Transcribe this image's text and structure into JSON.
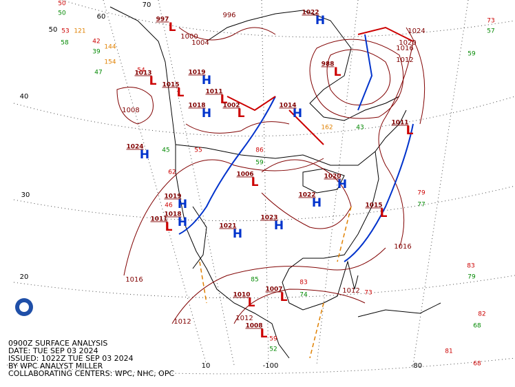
{
  "caption": [
    "0900Z SURFACE ANALYSIS",
    "DATE: TUE SEP 03 2024",
    "ISSUED: 1022Z TUE SEP 03 2024",
    "BY WPC ANALYST MILLER",
    "COLLABORATING CENTERS: WPC, NHC, OPC"
  ],
  "graticule_labels": [
    50,
    60,
    70,
    40,
    30,
    20,
    10,
    -100,
    -80
  ],
  "pressure_centers": [
    {
      "type": "H",
      "pressure": 1024
    },
    {
      "type": "H",
      "pressure": 1019
    },
    {
      "type": "H",
      "pressure": 1018
    },
    {
      "type": "H",
      "pressure": 1014
    },
    {
      "type": "H",
      "pressure": 1020
    },
    {
      "type": "H",
      "pressure": 1022
    },
    {
      "type": "H",
      "pressure": 1023
    },
    {
      "type": "H",
      "pressure": 1021
    },
    {
      "type": "H",
      "pressure": 1019
    },
    {
      "type": "H",
      "pressure": 1018
    },
    {
      "type": "H",
      "pressure": 1022
    },
    {
      "type": "L",
      "pressure": 1015
    },
    {
      "type": "L",
      "pressure": 1006
    },
    {
      "type": "L",
      "pressure": 1007
    },
    {
      "type": "L",
      "pressure": 1010
    },
    {
      "type": "L",
      "pressure": 1008
    },
    {
      "type": "L",
      "pressure": 997
    },
    {
      "type": "L",
      "pressure": 1013
    },
    {
      "type": "L",
      "pressure": 1015
    },
    {
      "type": "L",
      "pressure": 1011
    },
    {
      "type": "L",
      "pressure": 1002
    },
    {
      "type": "L",
      "pressure": 988
    },
    {
      "type": "L",
      "pressure": 1011
    },
    {
      "type": "L",
      "pressure": 1011
    }
  ],
  "isobar_labels": [
    1016,
    1012,
    1012,
    1016,
    1024,
    1020,
    1016,
    1012,
    996,
    1000,
    1004,
    1008,
    1012
  ],
  "station_values": [
    {
      "value": 50,
      "color": "#cc0000"
    },
    {
      "value": 50,
      "color": "#008800"
    },
    {
      "value": 53,
      "color": "#cc0000"
    },
    {
      "value": 121,
      "color": "#e08000"
    },
    {
      "value": 58,
      "color": "#008800"
    },
    {
      "value": 42,
      "color": "#cc0000"
    },
    {
      "value": 144,
      "color": "#e08000"
    },
    {
      "value": 39,
      "color": "#008800"
    },
    {
      "value": 154,
      "color": "#e08000"
    },
    {
      "value": 47,
      "color": "#008800"
    },
    {
      "value": 54,
      "color": "#cc0000"
    },
    {
      "value": 73,
      "color": "#cc0000"
    },
    {
      "value": 57,
      "color": "#008800"
    },
    {
      "value": 59,
      "color": "#008800"
    },
    {
      "value": 79,
      "color": "#cc0000"
    },
    {
      "value": 77,
      "color": "#008800"
    },
    {
      "value": 83,
      "color": "#cc0000"
    },
    {
      "value": 79,
      "color": "#008800"
    },
    {
      "value": 82,
      "color": "#cc0000"
    },
    {
      "value": 81,
      "color": "#cc0000"
    },
    {
      "value": 68,
      "color": "#cc0000"
    },
    {
      "value": 68,
      "color": "#008800"
    },
    {
      "value": 59,
      "color": "#cc0000"
    },
    {
      "value": 52,
      "color": "#008800"
    },
    {
      "value": 86,
      "color": "#cc0000"
    },
    {
      "value": 55,
      "color": "#cc0000"
    },
    {
      "value": 59,
      "color": "#008800"
    },
    {
      "value": 62,
      "color": "#cc0000"
    },
    {
      "value": 46,
      "color": "#cc0000"
    },
    {
      "value": 45,
      "color": "#008800"
    },
    {
      "value": 83,
      "color": "#cc0000"
    },
    {
      "value": 74,
      "color": "#008800"
    },
    {
      "value": 73,
      "color": "#cc0000"
    },
    {
      "value": 85,
      "color": "#008800"
    },
    {
      "value": 162,
      "color": "#e08000"
    },
    {
      "value": 43,
      "color": "#008800"
    }
  ]
}
